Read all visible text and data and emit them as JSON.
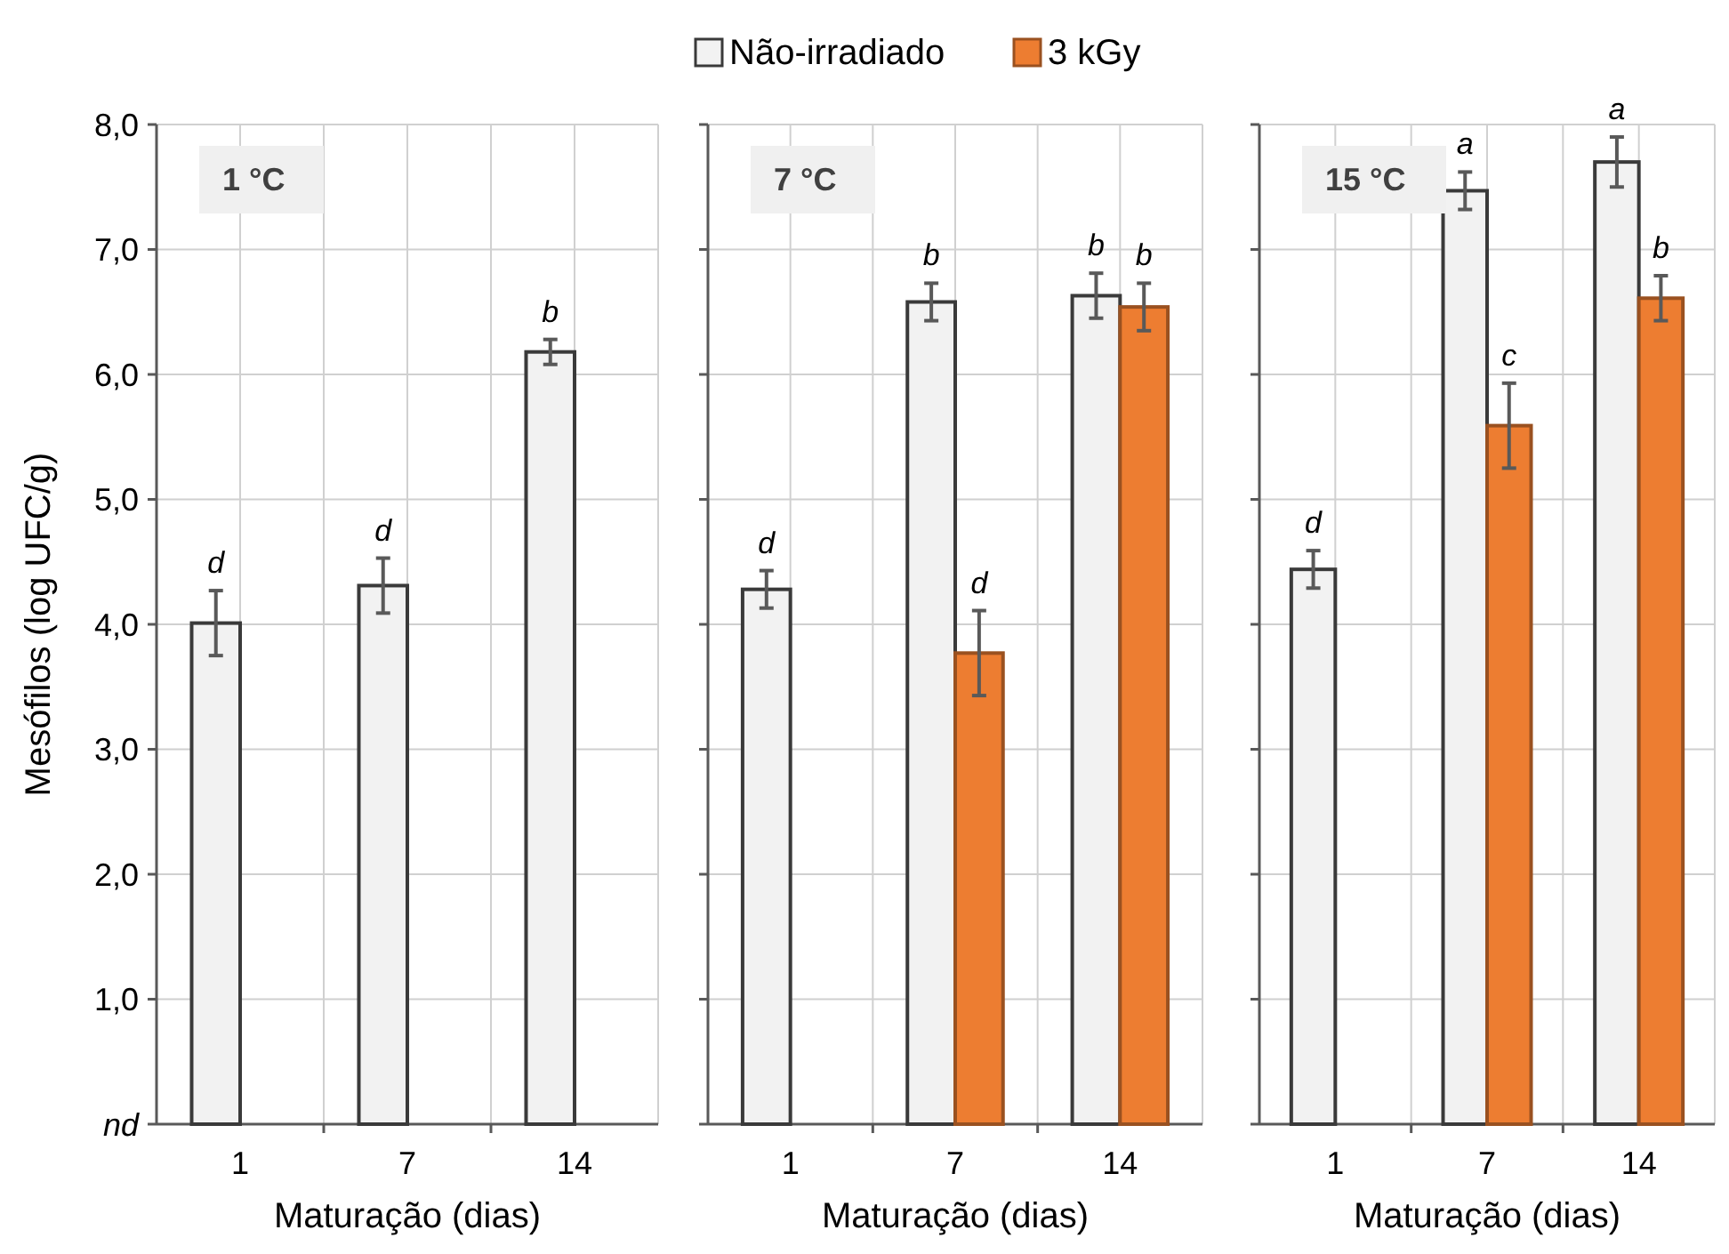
{
  "chart_data": [
    {
      "type": "bar",
      "categories": [
        "1",
        "7",
        "14"
      ],
      "xlabel": "Maturação (dias)",
      "ylabel": "Mesófilos (log UFC/g)",
      "ylim": [
        0,
        8
      ],
      "yticks": [
        {
          "value": 0,
          "label": "nd"
        },
        {
          "value": 1,
          "label": "1,0"
        },
        {
          "value": 2,
          "label": "2,0"
        },
        {
          "value": 3,
          "label": "3,0"
        },
        {
          "value": 4,
          "label": "4,0"
        },
        {
          "value": 5,
          "label": "5,0"
        },
        {
          "value": 6,
          "label": "6,0"
        },
        {
          "value": 7,
          "label": "7,0"
        },
        {
          "value": 8,
          "label": "8,0"
        }
      ],
      "grid": true,
      "legend": "top",
      "series": [
        {
          "name": "Não-irradiado",
          "color": "#f2f2f2",
          "values": [
            4.01,
            4.31,
            6.18
          ],
          "errors": [
            0.26,
            0.22,
            0.1
          ],
          "value_labels": [
            "d",
            "d",
            "b"
          ]
        },
        {
          "name": "3 kGy",
          "color": "#ed7d31",
          "values": [
            null,
            null,
            null
          ]
        }
      ],
      "annotations": [
        "1 °C"
      ]
    },
    {
      "type": "bar",
      "categories": [
        "1",
        "7",
        "14"
      ],
      "xlabel": "Maturação (dias)",
      "ylim": [
        0,
        8
      ],
      "yticks": [
        {
          "value": 0,
          "label": null
        },
        {
          "value": 1,
          "label": null
        },
        {
          "value": 2,
          "label": null
        },
        {
          "value": 3,
          "label": null
        },
        {
          "value": 4,
          "label": null
        },
        {
          "value": 5,
          "label": null
        },
        {
          "value": 6,
          "label": null
        },
        {
          "value": 7,
          "label": null
        },
        {
          "value": 8,
          "label": null
        }
      ],
      "grid": true,
      "tick_labels": "x",
      "series": [
        {
          "color": "#f2f2f2",
          "values": [
            4.28,
            6.58,
            6.63
          ],
          "errors": [
            0.15,
            0.15,
            0.18
          ],
          "value_labels": [
            "d",
            "b",
            "b"
          ]
        },
        {
          "color": "#ed7d31",
          "values": [
            0,
            3.77,
            6.54
          ],
          "errors": [
            null,
            0.34,
            0.19
          ],
          "value_labels": [
            null,
            "d",
            "b"
          ]
        }
      ],
      "annotations": [
        "7 °C"
      ]
    },
    {
      "type": "bar",
      "categories": [
        "1",
        "7",
        "14"
      ],
      "xlabel": "Maturação (dias)",
      "ylim": [
        0,
        8
      ],
      "yticks": [
        {
          "value": 0,
          "label": null
        },
        {
          "value": 1,
          "label": null
        },
        {
          "value": 2,
          "label": null
        },
        {
          "value": 3,
          "label": null
        },
        {
          "value": 4,
          "label": null
        },
        {
          "value": 5,
          "label": null
        },
        {
          "value": 6,
          "label": null
        },
        {
          "value": 7,
          "label": null
        },
        {
          "value": 8,
          "label": null
        }
      ],
      "grid": true,
      "tick_labels": "x",
      "series": [
        {
          "color": "#f2f2f2",
          "values": [
            4.44,
            7.47,
            7.7
          ],
          "errors": [
            0.15,
            0.15,
            0.2
          ],
          "value_labels": [
            "d",
            "a",
            "a"
          ]
        },
        {
          "color": "#ed7d31",
          "values": [
            0,
            5.59,
            6.61
          ],
          "errors": [
            null,
            0.34,
            0.18
          ],
          "value_labels": [
            null,
            "c",
            "b"
          ]
        }
      ],
      "annotations": [
        "15 °C"
      ]
    }
  ]
}
